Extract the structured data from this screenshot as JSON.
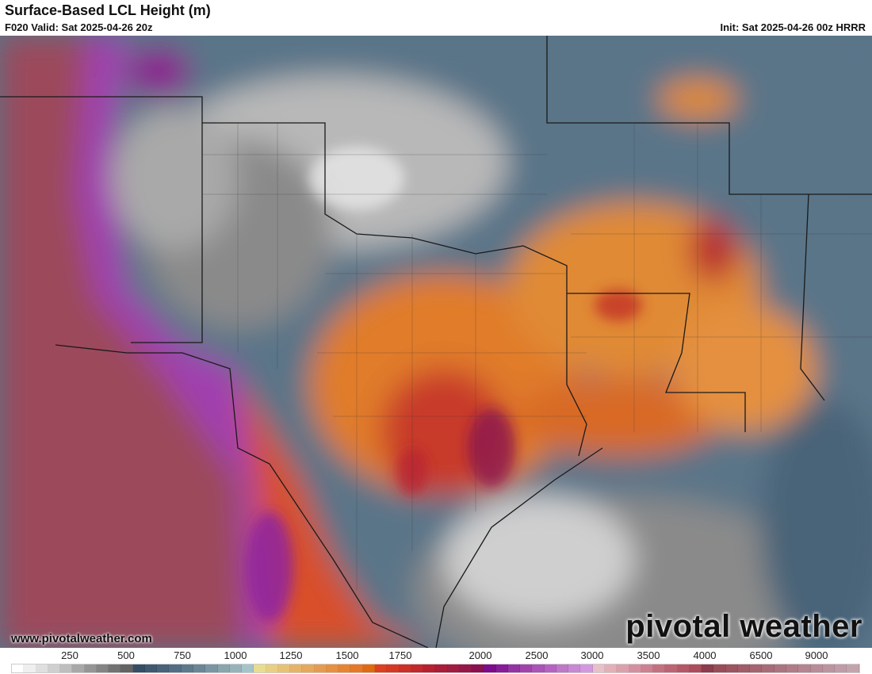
{
  "header": {
    "title": "Surface-Based LCL Height (m)",
    "valid": "F020 Valid: Sat 2025-04-26 20z",
    "init": "Init: Sat 2025-04-26 00z HRRR"
  },
  "footer": {
    "website": "www.pivotalweather.com",
    "logo": "pivotal weather"
  },
  "colorbar": {
    "labels": [
      "250",
      "500",
      "750",
      "1000",
      "1250",
      "1500",
      "1750",
      "2000",
      "2500",
      "3000",
      "3500",
      "4000",
      "6500",
      "9000"
    ],
    "colors": [
      "#ffffff",
      "#efefef",
      "#dfdfdf",
      "#cfcfcf",
      "#bebebe",
      "#a8a8a8",
      "#959595",
      "#848484",
      "#727272",
      "#636363",
      "#344e66",
      "#3e5a71",
      "#48637a",
      "#526e84",
      "#5d7a8d",
      "#6b8796",
      "#7a96a2",
      "#89a5ad",
      "#97b3b9",
      "#a5c4c9",
      "#e8dc90",
      "#e8cf82",
      "#e8c274",
      "#e6b466",
      "#e6a85a",
      "#e69c4e",
      "#e69040",
      "#e68432",
      "#e67826",
      "#e06a10",
      "#dc4020",
      "#d63824",
      "#cc3028",
      "#c2282c",
      "#b82030",
      "#aa1c38",
      "#a01c40",
      "#961848",
      "#8c1050",
      "#7c0c8c",
      "#881c98",
      "#9434a4",
      "#a044ac",
      "#aa54b8",
      "#b464c0",
      "#be78c8",
      "#c888d4",
      "#d498e0",
      "#e8c0c8",
      "#e4b0b8",
      "#dca0ac",
      "#d490a0",
      "#cc8090",
      "#c47080",
      "#bc6474",
      "#b45868",
      "#ac4c5c",
      "#8c3c4c",
      "#984c58",
      "#9c5460",
      "#a05c68",
      "#a46470",
      "#a86c78",
      "#ac7480",
      "#b07c88",
      "#b48490",
      "#b88c98",
      "#bc94a0",
      "#c09ca8",
      "#c4a4ac"
    ]
  }
}
